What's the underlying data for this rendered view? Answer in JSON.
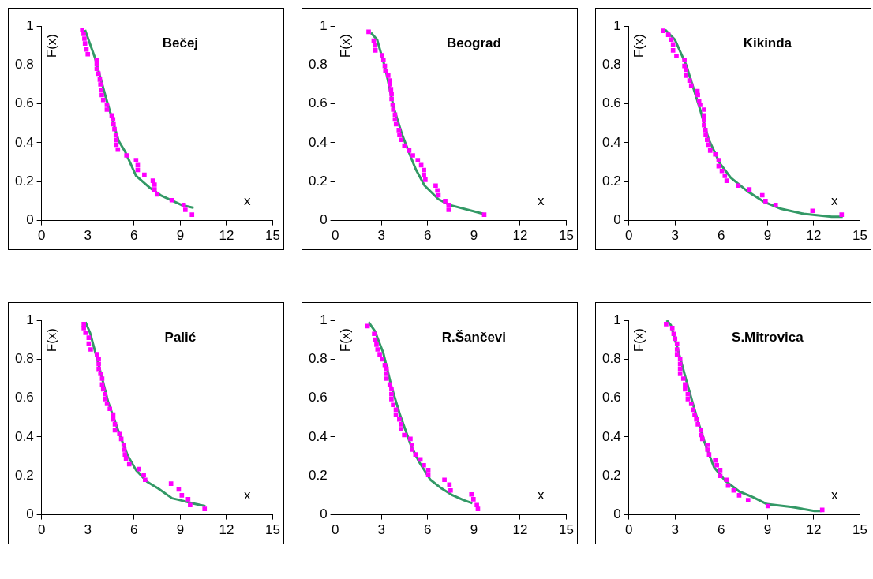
{
  "chart_data": [
    {
      "type": "scatter",
      "title": "Bečej",
      "xlabel": "x",
      "ylabel": "F(x)",
      "xlim": [
        0,
        15
      ],
      "ylim": [
        0,
        1
      ],
      "xticks": [
        0,
        3,
        6,
        9,
        12,
        15
      ],
      "yticks": [
        0,
        0.2,
        0.4,
        0.6,
        0.8,
        1
      ],
      "grid": false,
      "legend": false,
      "series": [
        {
          "marker": "square",
          "color": "#ff00ff",
          "x": [
            2.64,
            2.73,
            2.78,
            2.82,
            2.91,
            3.0,
            3.58,
            3.58,
            3.58,
            3.69,
            3.78,
            3.82,
            3.87,
            3.91,
            4.0,
            4.24,
            4.24,
            4.55,
            4.64,
            4.67,
            4.73,
            4.82,
            4.85,
            4.85,
            4.95,
            5.51,
            6.13,
            6.24,
            6.24,
            6.67,
            7.22,
            7.33,
            7.33,
            7.51,
            8.45,
            9.22,
            9.33,
            9.76
          ],
          "values": [
            0.98,
            0.96,
            0.935,
            0.91,
            0.88,
            0.855,
            0.825,
            0.805,
            0.78,
            0.755,
            0.725,
            0.7,
            0.67,
            0.645,
            0.62,
            0.595,
            0.57,
            0.54,
            0.52,
            0.495,
            0.47,
            0.44,
            0.415,
            0.39,
            0.365,
            0.335,
            0.31,
            0.285,
            0.26,
            0.235,
            0.205,
            0.185,
            0.16,
            0.135,
            0.105,
            0.08,
            0.055,
            0.03
          ]
        },
        {
          "type": "line",
          "color": "#339966",
          "x": [
            2.82,
            3.45,
            4.18,
            5.0,
            5.45,
            6.13,
            7.0,
            7.73,
            9.09,
            9.87
          ],
          "values": [
            0.98,
            0.84,
            0.63,
            0.41,
            0.35,
            0.23,
            0.17,
            0.13,
            0.08,
            0.065
          ]
        }
      ]
    },
    {
      "type": "scatter",
      "title": "Beograd",
      "xlabel": "x",
      "ylabel": "F(x)",
      "xlim": [
        0,
        15
      ],
      "ylim": [
        0,
        1
      ],
      "xticks": [
        0,
        3,
        6,
        9,
        12,
        15
      ],
      "yticks": [
        0,
        0.2,
        0.4,
        0.6,
        0.8,
        1
      ],
      "grid": false,
      "legend": false,
      "series": [
        {
          "marker": "square",
          "color": "#ff00ff",
          "x": [
            2.17,
            2.5,
            2.57,
            2.61,
            3.03,
            3.13,
            3.22,
            3.26,
            3.44,
            3.55,
            3.55,
            3.62,
            3.66,
            3.66,
            3.73,
            3.77,
            3.88,
            3.88,
            3.95,
            4.13,
            4.17,
            4.28,
            4.49,
            4.8,
            5.04,
            5.36,
            5.58,
            5.76,
            5.76,
            5.85,
            6.52,
            6.63,
            6.7,
            7.14,
            7.36,
            7.36,
            9.67
          ],
          "values": [
            0.97,
            0.925,
            0.9,
            0.875,
            0.85,
            0.825,
            0.795,
            0.77,
            0.745,
            0.72,
            0.7,
            0.675,
            0.65,
            0.625,
            0.595,
            0.57,
            0.545,
            0.52,
            0.495,
            0.465,
            0.44,
            0.415,
            0.385,
            0.36,
            0.335,
            0.31,
            0.285,
            0.26,
            0.235,
            0.21,
            0.18,
            0.155,
            0.13,
            0.1,
            0.08,
            0.055,
            0.03
          ]
        },
        {
          "type": "line",
          "color": "#339966",
          "x": [
            2.32,
            2.72,
            3.26,
            3.8,
            4.35,
            4.89,
            5.22,
            5.8,
            6.7,
            7.43,
            9.6
          ],
          "values": [
            0.965,
            0.93,
            0.78,
            0.58,
            0.44,
            0.33,
            0.265,
            0.18,
            0.11,
            0.08,
            0.035
          ]
        }
      ]
    },
    {
      "type": "scatter",
      "title": "Kikinda",
      "xlabel": "x",
      "ylabel": "F(x)",
      "xlim": [
        0,
        15
      ],
      "ylim": [
        0,
        1
      ],
      "xticks": [
        0,
        3,
        6,
        9,
        12,
        15
      ],
      "yticks": [
        0,
        0.2,
        0.4,
        0.6,
        0.8,
        1
      ],
      "grid": false,
      "legend": false,
      "series": [
        {
          "marker": "square",
          "color": "#ff00ff",
          "x": [
            2.23,
            2.56,
            2.76,
            2.87,
            2.87,
            3.09,
            3.61,
            3.61,
            3.72,
            3.72,
            3.94,
            4.05,
            4.45,
            4.48,
            4.56,
            4.63,
            4.88,
            4.88,
            4.88,
            4.88,
            4.97,
            4.99,
            5.08,
            5.17,
            5.28,
            5.61,
            5.83,
            5.83,
            6.04,
            6.23,
            6.35,
            7.1,
            7.82,
            8.66,
            8.87,
            9.53,
            11.92,
            13.81
          ],
          "values": [
            0.975,
            0.955,
            0.93,
            0.905,
            0.875,
            0.845,
            0.825,
            0.795,
            0.775,
            0.745,
            0.72,
            0.695,
            0.665,
            0.645,
            0.615,
            0.595,
            0.57,
            0.54,
            0.515,
            0.49,
            0.465,
            0.44,
            0.415,
            0.39,
            0.36,
            0.34,
            0.31,
            0.28,
            0.255,
            0.23,
            0.205,
            0.18,
            0.16,
            0.13,
            0.1,
            0.08,
            0.05,
            0.03
          ]
        },
        {
          "type": "line",
          "color": "#339966",
          "x": [
            2.36,
            2.99,
            3.72,
            4.63,
            5.17,
            5.9,
            6.62,
            7.71,
            8.8,
            9.89,
            11.34,
            13.16,
            13.88
          ],
          "values": [
            0.98,
            0.93,
            0.8,
            0.57,
            0.42,
            0.295,
            0.22,
            0.15,
            0.095,
            0.06,
            0.035,
            0.02,
            0.02
          ]
        }
      ]
    },
    {
      "type": "scatter",
      "title": "Palić",
      "xlabel": "x",
      "ylabel": "F(x)",
      "xlim": [
        0,
        15
      ],
      "ylim": [
        0,
        1
      ],
      "xticks": [
        0,
        3,
        6,
        9,
        12,
        15
      ],
      "yticks": [
        0,
        0.2,
        0.4,
        0.6,
        0.8,
        1
      ],
      "grid": false,
      "legend": false,
      "series": [
        {
          "marker": "square",
          "color": "#ff00ff",
          "x": [
            2.74,
            2.74,
            2.85,
            3.06,
            3.06,
            3.19,
            3.6,
            3.71,
            3.71,
            3.71,
            3.82,
            3.93,
            3.93,
            4.0,
            4.11,
            4.14,
            4.25,
            4.43,
            4.65,
            4.65,
            4.76,
            4.76,
            5.05,
            5.17,
            5.33,
            5.37,
            5.41,
            5.48,
            5.69,
            6.31,
            6.63,
            6.72,
            8.4,
            8.9,
            9.1,
            9.51,
            9.64,
            10.58
          ],
          "values": [
            0.98,
            0.96,
            0.935,
            0.91,
            0.88,
            0.85,
            0.825,
            0.8,
            0.775,
            0.75,
            0.725,
            0.7,
            0.67,
            0.645,
            0.62,
            0.595,
            0.57,
            0.545,
            0.515,
            0.49,
            0.465,
            0.435,
            0.415,
            0.39,
            0.36,
            0.335,
            0.31,
            0.29,
            0.26,
            0.235,
            0.205,
            0.18,
            0.16,
            0.13,
            0.1,
            0.08,
            0.05,
            0.03
          ]
        },
        {
          "type": "line",
          "color": "#339966",
          "x": [
            2.85,
            3.15,
            3.69,
            4.32,
            5.05,
            5.59,
            6.13,
            6.85,
            7.57,
            8.47,
            9.01,
            9.73,
            10.63
          ],
          "values": [
            0.99,
            0.935,
            0.775,
            0.58,
            0.415,
            0.305,
            0.23,
            0.17,
            0.135,
            0.085,
            0.075,
            0.06,
            0.045
          ]
        }
      ]
    },
    {
      "type": "scatter",
      "title": "R.Šančevi",
      "xlabel": "x",
      "ylabel": "F(x)",
      "xlim": [
        0,
        15
      ],
      "ylim": [
        0,
        1
      ],
      "xticks": [
        0,
        3,
        6,
        9,
        12,
        15
      ],
      "yticks": [
        0,
        0.2,
        0.4,
        0.6,
        0.8,
        1
      ],
      "grid": false,
      "legend": false,
      "series": [
        {
          "marker": "square",
          "color": "#ff00ff",
          "x": [
            2.1,
            2.53,
            2.6,
            2.68,
            2.75,
            2.89,
            3.04,
            3.22,
            3.33,
            3.33,
            3.33,
            3.54,
            3.65,
            3.65,
            3.65,
            3.76,
            3.94,
            3.94,
            4.16,
            4.27,
            4.27,
            4.48,
            4.88,
            4.99,
            4.99,
            5.21,
            5.53,
            5.75,
            6.04,
            6.04,
            7.09,
            7.41,
            7.49,
            8.84,
            8.97,
            9.19,
            9.26
          ],
          "values": [
            0.97,
            0.93,
            0.9,
            0.875,
            0.85,
            0.825,
            0.8,
            0.77,
            0.75,
            0.725,
            0.7,
            0.67,
            0.645,
            0.62,
            0.595,
            0.565,
            0.54,
            0.515,
            0.49,
            0.465,
            0.44,
            0.41,
            0.39,
            0.36,
            0.335,
            0.31,
            0.285,
            0.255,
            0.23,
            0.205,
            0.18,
            0.155,
            0.125,
            0.105,
            0.08,
            0.05,
            0.03
          ]
        },
        {
          "type": "line",
          "color": "#339966",
          "x": [
            2.17,
            2.57,
            3.11,
            3.65,
            4.2,
            4.92,
            5.46,
            6.18,
            6.91,
            7.63,
            8.35,
            8.9
          ],
          "values": [
            0.99,
            0.945,
            0.835,
            0.66,
            0.515,
            0.355,
            0.27,
            0.18,
            0.135,
            0.1,
            0.075,
            0.06
          ]
        }
      ]
    },
    {
      "type": "scatter",
      "title": "S.Mitrovica",
      "xlabel": "x",
      "ylabel": "F(x)",
      "xlim": [
        0,
        15
      ],
      "ylim": [
        0,
        1
      ],
      "xticks": [
        0,
        3,
        6,
        9,
        12,
        15
      ],
      "yticks": [
        0,
        0.2,
        0.4,
        0.6,
        0.8,
        1
      ],
      "grid": false,
      "legend": false,
      "series": [
        {
          "marker": "square",
          "color": "#ff00ff",
          "x": [
            2.42,
            2.82,
            2.91,
            3.0,
            3.13,
            3.13,
            3.13,
            3.33,
            3.33,
            3.33,
            3.33,
            3.54,
            3.65,
            3.65,
            3.83,
            3.83,
            4.05,
            4.16,
            4.27,
            4.38,
            4.48,
            4.67,
            4.7,
            4.77,
            5.1,
            5.1,
            5.21,
            5.61,
            5.71,
            5.93,
            5.93,
            6.33,
            6.44,
            6.8,
            7.16,
            7.74,
            9.02,
            12.55
          ],
          "values": [
            0.98,
            0.96,
            0.93,
            0.905,
            0.88,
            0.85,
            0.825,
            0.8,
            0.775,
            0.75,
            0.725,
            0.7,
            0.67,
            0.645,
            0.62,
            0.595,
            0.57,
            0.54,
            0.515,
            0.49,
            0.465,
            0.435,
            0.41,
            0.39,
            0.36,
            0.335,
            0.31,
            0.28,
            0.255,
            0.23,
            0.2,
            0.18,
            0.15,
            0.125,
            0.1,
            0.075,
            0.045,
            0.025
          ]
        },
        {
          "type": "line",
          "color": "#339966",
          "x": [
            2.46,
            2.73,
            3.18,
            3.73,
            4.45,
            4.99,
            5.53,
            6.26,
            7.16,
            8.07,
            8.97,
            10.6,
            12.04,
            12.5
          ],
          "values": [
            1.0,
            0.975,
            0.85,
            0.69,
            0.49,
            0.355,
            0.245,
            0.175,
            0.12,
            0.09,
            0.055,
            0.04,
            0.02,
            0.02
          ]
        }
      ]
    }
  ]
}
